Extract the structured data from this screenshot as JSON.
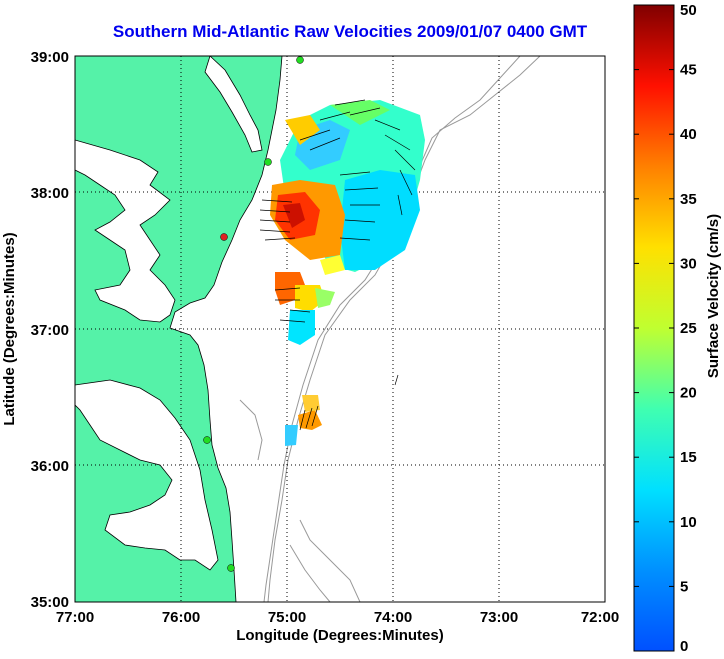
{
  "title": "Southern Mid-Atlantic Raw Velocities 2009/01/07 0400 GMT",
  "map": {
    "xlabel": "Longitude (Degrees:Minutes)",
    "ylabel": "Latitude (Degrees:Minutes)",
    "x_ticks": [
      "77:00",
      "76:00",
      "75:00",
      "74:00",
      "73:00",
      "72:00"
    ],
    "y_ticks": [
      "39:00",
      "38:00",
      "37:00",
      "36:00",
      "35:00"
    ],
    "xlim": [
      -77,
      -72
    ],
    "ylim": [
      35,
      39
    ],
    "grid": "dotted",
    "colors": {
      "land": "#55f2a8",
      "ocean": "#ffffff",
      "bathymetry": "#999999",
      "stations": "#22dd22",
      "station_offline": "#dd2222"
    }
  },
  "colorbar": {
    "label": "Surface Velocity (cm/s)",
    "ticks": [
      "50",
      "45",
      "40",
      "35",
      "30",
      "25",
      "20",
      "15",
      "10",
      "5",
      "0"
    ],
    "range": [
      0,
      50
    ],
    "colormap": "jet"
  }
}
